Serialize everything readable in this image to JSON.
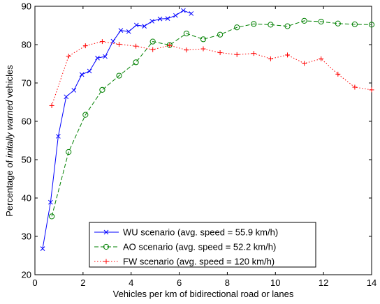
{
  "chart_data": {
    "type": "line",
    "xlabel": "Vehicles per km of bidirectional road or lanes",
    "ylabel_prefix": "Percentage of ",
    "ylabel_italic": "initally warned",
    "ylabel_suffix": " vehicles",
    "xlim": [
      0,
      14
    ],
    "ylim": [
      20,
      90
    ],
    "xticks": [
      0,
      2,
      4,
      6,
      8,
      10,
      12,
      14
    ],
    "yticks": [
      20,
      30,
      40,
      50,
      60,
      70,
      80,
      90
    ],
    "grid": false,
    "legend_position": "bottom-center",
    "series": [
      {
        "name": "WU scenario (avg. speed = 55.9 km/h)",
        "color": "#0000ff",
        "line_style": "solid",
        "marker": "x",
        "x": [
          0.32,
          0.65,
          0.97,
          1.3,
          1.62,
          1.95,
          2.27,
          2.6,
          2.92,
          3.25,
          3.57,
          3.9,
          4.22,
          4.55,
          4.87,
          5.2,
          5.52,
          5.85,
          6.17,
          6.5
        ],
        "y": [
          26.8,
          38.9,
          56.1,
          66.4,
          68.1,
          72.2,
          73.1,
          76.5,
          76.9,
          80.9,
          83.7,
          83.4,
          85.1,
          84.8,
          86.1,
          86.7,
          86.8,
          87.6,
          88.9,
          88.1
        ]
      },
      {
        "name": "AO scenario (avg. speed = 52.2 km/h)",
        "color": "#008000",
        "line_style": "dashed",
        "marker": "o",
        "x": [
          0.7,
          1.4,
          2.1,
          2.8,
          3.5,
          4.2,
          4.9,
          5.6,
          6.3,
          7.0,
          7.7,
          8.4,
          9.1,
          9.8,
          10.5,
          11.2,
          11.9,
          12.6,
          13.3,
          14.0
        ],
        "y": [
          35.2,
          52.0,
          61.7,
          68.2,
          71.9,
          75.4,
          80.8,
          79.9,
          82.9,
          81.4,
          82.6,
          84.5,
          85.4,
          85.2,
          84.8,
          86.2,
          86.0,
          85.5,
          85.3,
          85.2
        ]
      },
      {
        "name": "FW scenario (avg. speed = 120 km/h)",
        "color": "#ff0000",
        "line_style": "dotted",
        "marker": "+",
        "x": [
          0.7,
          1.4,
          2.1,
          2.8,
          3.5,
          4.2,
          4.9,
          5.6,
          6.3,
          7.0,
          7.7,
          8.4,
          9.1,
          9.8,
          10.5,
          11.2,
          11.9,
          12.6,
          13.3,
          14.0
        ],
        "y": [
          64.1,
          77.0,
          79.7,
          80.8,
          80.1,
          79.6,
          78.7,
          79.8,
          78.6,
          78.9,
          77.9,
          77.4,
          77.7,
          76.3,
          77.3,
          75.1,
          76.3,
          72.3,
          68.9,
          68.2
        ]
      }
    ]
  }
}
